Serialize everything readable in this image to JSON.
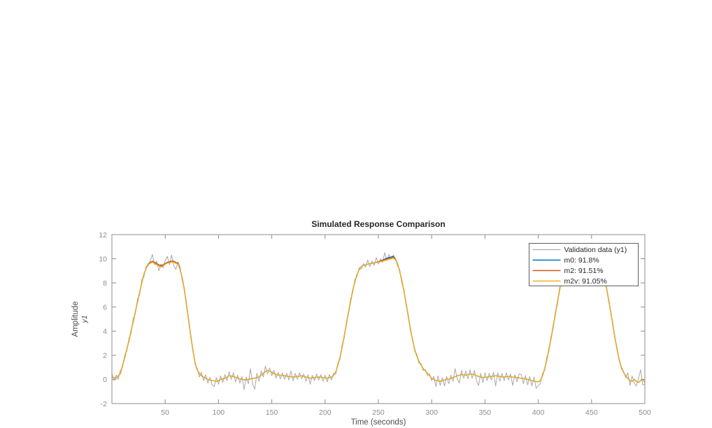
{
  "figure": {
    "background": "#ffffff"
  },
  "chart": {
    "title": "Simulated Response Comparison",
    "xlabel": "Time (seconds)",
    "ylabel": "Amplitude",
    "ylabel_sub": "y1"
  },
  "colors": {
    "validation_gray": "#a9a9a9",
    "matlab_blue": "#0072bd",
    "matlab_orange": "#d95319",
    "matlab_yellow": "#edb120",
    "axis_line": "#8c8c8c",
    "tick_text": "#8c8c8c",
    "label_text": "#4d4d4d",
    "title_text": "#262626",
    "legend_border": "#5f5f5f",
    "legend_bg": "#ffffff"
  },
  "chart_data": {
    "type": "line",
    "title": "Simulated Response Comparison",
    "xlabel": "Time (seconds)",
    "ylabel": "Amplitude",
    "ylabel_sub": "y1",
    "xlim": [
      0,
      500
    ],
    "ylim": [
      -2,
      12
    ],
    "xticks": [
      50,
      100,
      150,
      200,
      250,
      300,
      350,
      400,
      450,
      500
    ],
    "yticks": [
      -2,
      0,
      2,
      4,
      6,
      8,
      10,
      12
    ],
    "grid": false,
    "legend_position": "top-right-inside",
    "x": {
      "start": 0,
      "step": 2,
      "count": 251
    },
    "series": [
      {
        "name": "Validation data (y1)",
        "color": "#a9a9a9",
        "width": 1,
        "values": [
          0.5,
          -0.1,
          0.35,
          0.0,
          0.75,
          1.0,
          2.0,
          2.35,
          3.4,
          3.8,
          5.05,
          5.45,
          6.65,
          7.0,
          8.25,
          8.5,
          9.35,
          9.4,
          9.85,
          10.35,
          9.5,
          9.8,
          9.0,
          9.55,
          9.25,
          9.85,
          10.2,
          9.5,
          10.3,
          9.45,
          9.1,
          9.75,
          9.3,
          8.2,
          7.6,
          6.0,
          5.05,
          3.45,
          2.55,
          1.25,
          0.95,
          0.2,
          0.6,
          -0.1,
          0.4,
          -0.3,
          0.2,
          -0.45,
          -0.6,
          0.15,
          -0.4,
          0.3,
          -0.25,
          0.4,
          -0.1,
          0.65,
          0.0,
          0.55,
          -0.2,
          0.35,
          -0.3,
          0.25,
          -0.85,
          0.2,
          -0.35,
          0.9,
          -0.4,
          -0.8,
          0.5,
          -0.15,
          0.7,
          0.2,
          1.1,
          0.45,
          0.95,
          0.3,
          0.75,
          0.1,
          0.6,
          0.05,
          0.55,
          0.0,
          0.5,
          -0.05,
          0.7,
          -0.1,
          0.5,
          0.0,
          0.55,
          0.05,
          0.45,
          -0.15,
          0.4,
          -0.4,
          0.35,
          -0.1,
          0.45,
          -0.05,
          0.4,
          -0.15,
          0.35,
          -0.2,
          0.4,
          -0.05,
          0.5,
          0.45,
          1.35,
          1.65,
          2.9,
          3.45,
          4.8,
          5.45,
          6.7,
          7.25,
          8.3,
          8.55,
          9.25,
          9.15,
          9.6,
          9.3,
          9.9,
          9.35,
          9.8,
          9.45,
          10.1,
          9.55,
          10.0,
          9.7,
          10.5,
          9.85,
          10.35,
          9.95,
          10.3,
          10.0,
          9.4,
          9.1,
          8.0,
          7.45,
          6.15,
          5.4,
          4.05,
          3.4,
          2.35,
          2.1,
          1.35,
          1.3,
          0.75,
          0.8,
          0.35,
          0.45,
          -0.1,
          0.25,
          -0.6,
          0.3,
          -0.5,
          0.15,
          -0.55,
          0.25,
          -0.35,
          0.35,
          -0.15,
          0.9,
          0.05,
          -0.3,
          0.75,
          0.1,
          0.7,
          0.05,
          0.8,
          0.1,
          0.75,
          -0.1,
          -0.5,
          0.5,
          -0.25,
          0.55,
          -0.1,
          0.5,
          -0.05,
          0.6,
          -0.55,
          0.55,
          -0.15,
          0.5,
          -0.1,
          0.55,
          -0.05,
          0.45,
          -0.5,
          0.4,
          -0.2,
          0.45,
          0.4,
          -0.35,
          0.3,
          -0.45,
          0.25,
          -0.55,
          0.2,
          -0.75,
          -0.5,
          -0.35,
          0.5,
          0.75,
          1.85,
          2.3,
          3.6,
          4.2,
          5.6,
          6.2,
          7.6,
          8.15,
          9.15,
          9.4,
          9.95,
          9.85,
          10.3,
          9.9,
          10.35,
          9.95,
          10.25,
          9.9,
          10.2,
          9.95,
          10.3,
          9.9,
          10.2,
          9.85,
          10.0,
          9.45,
          9.4,
          8.3,
          7.7,
          6.45,
          5.7,
          4.35,
          3.5,
          2.35,
          1.7,
          0.85,
          0.7,
          0.15,
          0.55,
          -0.5,
          0.3,
          -0.3,
          -0.55,
          0.1,
          0.8,
          -0.45,
          -0.4
        ]
      },
      {
        "name": "m0: 91.8%",
        "color": "#0072bd",
        "width": 1.3,
        "values": [
          0.2,
          0.15,
          0.1,
          0.3,
          0.5,
          1.15,
          1.8,
          2.5,
          3.2,
          4.0,
          4.8,
          5.6,
          6.4,
          7.2,
          8.0,
          8.7,
          9.2,
          9.55,
          9.7,
          9.8,
          9.7,
          9.6,
          9.5,
          9.4,
          9.5,
          9.6,
          9.7,
          9.75,
          9.8,
          9.8,
          9.7,
          9.6,
          9.1,
          8.4,
          7.4,
          6.2,
          4.9,
          3.6,
          2.4,
          1.4,
          0.8,
          0.5,
          0.3,
          0.2,
          0.1,
          0.0,
          -0.05,
          -0.1,
          -0.12,
          -0.15,
          -0.1,
          0.0,
          0.05,
          0.1,
          0.2,
          0.3,
          0.28,
          0.25,
          0.18,
          0.1,
          0.05,
          0.0,
          -0.02,
          -0.05,
          0.0,
          0.05,
          0.08,
          0.1,
          0.15,
          0.2,
          0.35,
          0.5,
          0.65,
          0.75,
          0.68,
          0.6,
          0.5,
          0.4,
          0.37,
          0.35,
          0.32,
          0.3,
          0.28,
          0.25,
          0.22,
          0.2,
          0.22,
          0.25,
          0.28,
          0.3,
          0.25,
          0.2,
          0.15,
          0.1,
          0.12,
          0.15,
          0.18,
          0.2,
          0.18,
          0.15,
          0.12,
          0.1,
          0.15,
          0.2,
          0.35,
          0.6,
          1.2,
          1.8,
          2.7,
          3.6,
          4.6,
          5.6,
          6.5,
          7.4,
          8.1,
          8.7,
          9.1,
          9.35,
          9.45,
          9.5,
          9.55,
          9.6,
          9.62,
          9.65,
          9.7,
          9.75,
          9.82,
          9.9,
          9.97,
          10.05,
          10.1,
          10.15,
          10.2,
          9.95,
          9.6,
          8.95,
          8.2,
          7.3,
          6.3,
          5.25,
          4.2,
          3.3,
          2.5,
          1.95,
          1.5,
          1.2,
          0.9,
          0.7,
          0.5,
          0.3,
          0.1,
          0.0,
          -0.1,
          -0.12,
          -0.15,
          -0.1,
          -0.05,
          0.0,
          0.0,
          0.08,
          0.15,
          0.22,
          0.3,
          0.35,
          0.4,
          0.38,
          0.35,
          0.4,
          0.45,
          0.42,
          0.4,
          0.3,
          0.25,
          0.2,
          0.15,
          0.18,
          0.2,
          0.22,
          0.25,
          0.28,
          0.3,
          0.28,
          0.25,
          0.22,
          0.2,
          0.22,
          0.25,
          0.22,
          0.2,
          0.18,
          0.15,
          0.12,
          0.1,
          0.08,
          0.05,
          0.0,
          -0.05,
          -0.1,
          -0.15,
          -0.18,
          -0.2,
          -0.1,
          0.3,
          0.9,
          1.6,
          2.5,
          3.4,
          4.4,
          5.4,
          6.4,
          7.4,
          8.3,
          9.0,
          9.5,
          9.8,
          10.0,
          10.1,
          10.12,
          10.15,
          10.12,
          10.1,
          10.08,
          10.05,
          10.08,
          10.1,
          10.08,
          10.05,
          10.0,
          9.9,
          9.6,
          9.3,
          8.5,
          7.6,
          6.6,
          5.6,
          4.5,
          3.4,
          2.5,
          1.6,
          1.0,
          0.6,
          0.3,
          0.1,
          -0.1,
          -0.15,
          0.0,
          -0.15,
          -0.25,
          -0.1,
          0.0,
          -0.25
        ]
      },
      {
        "name": "m2: 91.51%",
        "color": "#d95319",
        "width": 1.3,
        "values": [
          0.2,
          0.15,
          0.1,
          0.3,
          0.5,
          1.15,
          1.8,
          2.5,
          3.2,
          4.0,
          4.8,
          5.6,
          6.4,
          7.2,
          8.0,
          8.7,
          9.2,
          9.55,
          9.7,
          9.8,
          9.7,
          9.6,
          9.48,
          9.45,
          9.5,
          9.6,
          9.7,
          9.75,
          9.8,
          9.8,
          9.7,
          9.6,
          9.1,
          8.4,
          7.4,
          6.2,
          4.9,
          3.6,
          2.4,
          1.4,
          0.8,
          0.5,
          0.3,
          0.2,
          0.1,
          0.0,
          -0.05,
          -0.1,
          -0.12,
          -0.15,
          -0.1,
          0.0,
          0.05,
          0.1,
          0.2,
          0.3,
          0.28,
          0.25,
          0.18,
          0.1,
          0.05,
          0.0,
          -0.02,
          -0.05,
          0.0,
          0.05,
          0.08,
          0.1,
          0.15,
          0.2,
          0.35,
          0.5,
          0.65,
          0.75,
          0.68,
          0.6,
          0.5,
          0.4,
          0.37,
          0.35,
          0.32,
          0.3,
          0.28,
          0.25,
          0.22,
          0.2,
          0.22,
          0.25,
          0.28,
          0.3,
          0.25,
          0.2,
          0.15,
          0.1,
          0.12,
          0.15,
          0.18,
          0.2,
          0.18,
          0.15,
          0.12,
          0.1,
          0.15,
          0.2,
          0.35,
          0.6,
          1.2,
          1.8,
          2.7,
          3.6,
          4.6,
          5.6,
          6.5,
          7.4,
          8.1,
          8.7,
          9.1,
          9.35,
          9.45,
          9.5,
          9.55,
          9.6,
          9.62,
          9.65,
          9.7,
          9.75,
          9.82,
          9.88,
          9.92,
          9.98,
          10.03,
          10.08,
          10.12,
          9.95,
          9.6,
          8.95,
          8.2,
          7.3,
          6.3,
          5.25,
          4.2,
          3.3,
          2.5,
          1.95,
          1.5,
          1.2,
          0.9,
          0.7,
          0.5,
          0.3,
          0.1,
          0.0,
          -0.1,
          -0.12,
          -0.15,
          -0.1,
          -0.05,
          0.0,
          0.0,
          0.08,
          0.15,
          0.22,
          0.3,
          0.35,
          0.4,
          0.38,
          0.35,
          0.4,
          0.45,
          0.42,
          0.4,
          0.3,
          0.25,
          0.2,
          0.15,
          0.18,
          0.2,
          0.22,
          0.25,
          0.28,
          0.3,
          0.28,
          0.25,
          0.22,
          0.2,
          0.22,
          0.25,
          0.22,
          0.2,
          0.18,
          0.15,
          0.12,
          0.1,
          0.08,
          0.05,
          0.0,
          -0.05,
          -0.1,
          -0.15,
          -0.18,
          -0.2,
          -0.1,
          0.3,
          0.9,
          1.6,
          2.5,
          3.4,
          4.4,
          5.4,
          6.4,
          7.4,
          8.3,
          9.0,
          9.5,
          9.8,
          10.0,
          10.1,
          10.12,
          10.15,
          10.12,
          10.1,
          10.08,
          10.05,
          10.08,
          10.1,
          10.08,
          10.05,
          10.0,
          9.9,
          9.6,
          9.3,
          8.5,
          7.6,
          6.6,
          5.6,
          4.5,
          3.4,
          2.5,
          1.6,
          1.0,
          0.6,
          0.3,
          0.1,
          -0.1,
          -0.15,
          0.0,
          -0.15,
          -0.25,
          -0.1,
          0.0,
          -0.25
        ]
      },
      {
        "name": "m2v: 91.05%",
        "color": "#edb120",
        "width": 1.3,
        "values": [
          0.2,
          0.15,
          0.1,
          0.3,
          0.5,
          1.15,
          1.8,
          2.5,
          3.2,
          4.0,
          4.8,
          5.6,
          6.4,
          7.2,
          8.0,
          8.7,
          9.2,
          9.5,
          9.62,
          9.7,
          9.6,
          9.5,
          9.38,
          9.3,
          9.4,
          9.55,
          9.63,
          9.68,
          9.7,
          9.7,
          9.62,
          9.55,
          9.1,
          8.4,
          7.4,
          6.2,
          4.9,
          3.6,
          2.4,
          1.4,
          0.8,
          0.5,
          0.3,
          0.2,
          0.1,
          0.0,
          -0.05,
          -0.1,
          -0.12,
          -0.15,
          -0.1,
          0.0,
          0.05,
          0.1,
          0.2,
          0.3,
          0.28,
          0.25,
          0.18,
          0.1,
          0.05,
          0.0,
          -0.02,
          -0.05,
          0.0,
          0.05,
          0.08,
          0.1,
          0.15,
          0.2,
          0.35,
          0.5,
          0.65,
          0.75,
          0.68,
          0.6,
          0.5,
          0.4,
          0.37,
          0.35,
          0.32,
          0.3,
          0.28,
          0.25,
          0.22,
          0.2,
          0.22,
          0.25,
          0.28,
          0.3,
          0.25,
          0.2,
          0.15,
          0.1,
          0.12,
          0.15,
          0.18,
          0.2,
          0.18,
          0.15,
          0.12,
          0.1,
          0.15,
          0.2,
          0.35,
          0.6,
          1.2,
          1.8,
          2.7,
          3.6,
          4.6,
          5.6,
          6.5,
          7.4,
          8.1,
          8.7,
          9.1,
          9.35,
          9.45,
          9.5,
          9.55,
          9.6,
          9.62,
          9.65,
          9.68,
          9.72,
          9.75,
          9.8,
          9.85,
          9.9,
          9.95,
          10.0,
          10.05,
          9.9,
          9.6,
          8.95,
          8.2,
          7.3,
          6.3,
          5.25,
          4.2,
          3.3,
          2.5,
          1.95,
          1.5,
          1.2,
          0.9,
          0.7,
          0.5,
          0.3,
          0.1,
          0.0,
          -0.1,
          -0.12,
          -0.15,
          -0.1,
          -0.05,
          0.0,
          0.0,
          0.08,
          0.15,
          0.22,
          0.3,
          0.35,
          0.4,
          0.38,
          0.35,
          0.4,
          0.45,
          0.42,
          0.4,
          0.3,
          0.25,
          0.2,
          0.15,
          0.18,
          0.2,
          0.22,
          0.25,
          0.28,
          0.3,
          0.28,
          0.25,
          0.22,
          0.2,
          0.22,
          0.25,
          0.22,
          0.2,
          0.18,
          0.15,
          0.12,
          0.1,
          0.08,
          0.05,
          0.0,
          -0.05,
          -0.1,
          -0.15,
          -0.18,
          -0.2,
          -0.1,
          0.3,
          0.9,
          1.6,
          2.5,
          3.4,
          4.4,
          5.4,
          6.4,
          7.4,
          8.3,
          9.0,
          9.5,
          9.78,
          9.95,
          10.0,
          10.02,
          10.05,
          10.02,
          10.0,
          9.98,
          9.95,
          9.98,
          10.0,
          9.98,
          9.95,
          9.9,
          9.8,
          9.6,
          9.3,
          8.5,
          7.6,
          6.6,
          5.6,
          4.5,
          3.4,
          2.5,
          1.6,
          1.0,
          0.6,
          0.3,
          0.1,
          -0.1,
          -0.15,
          0.0,
          -0.15,
          -0.25,
          -0.1,
          0.0,
          -0.25
        ]
      }
    ]
  }
}
